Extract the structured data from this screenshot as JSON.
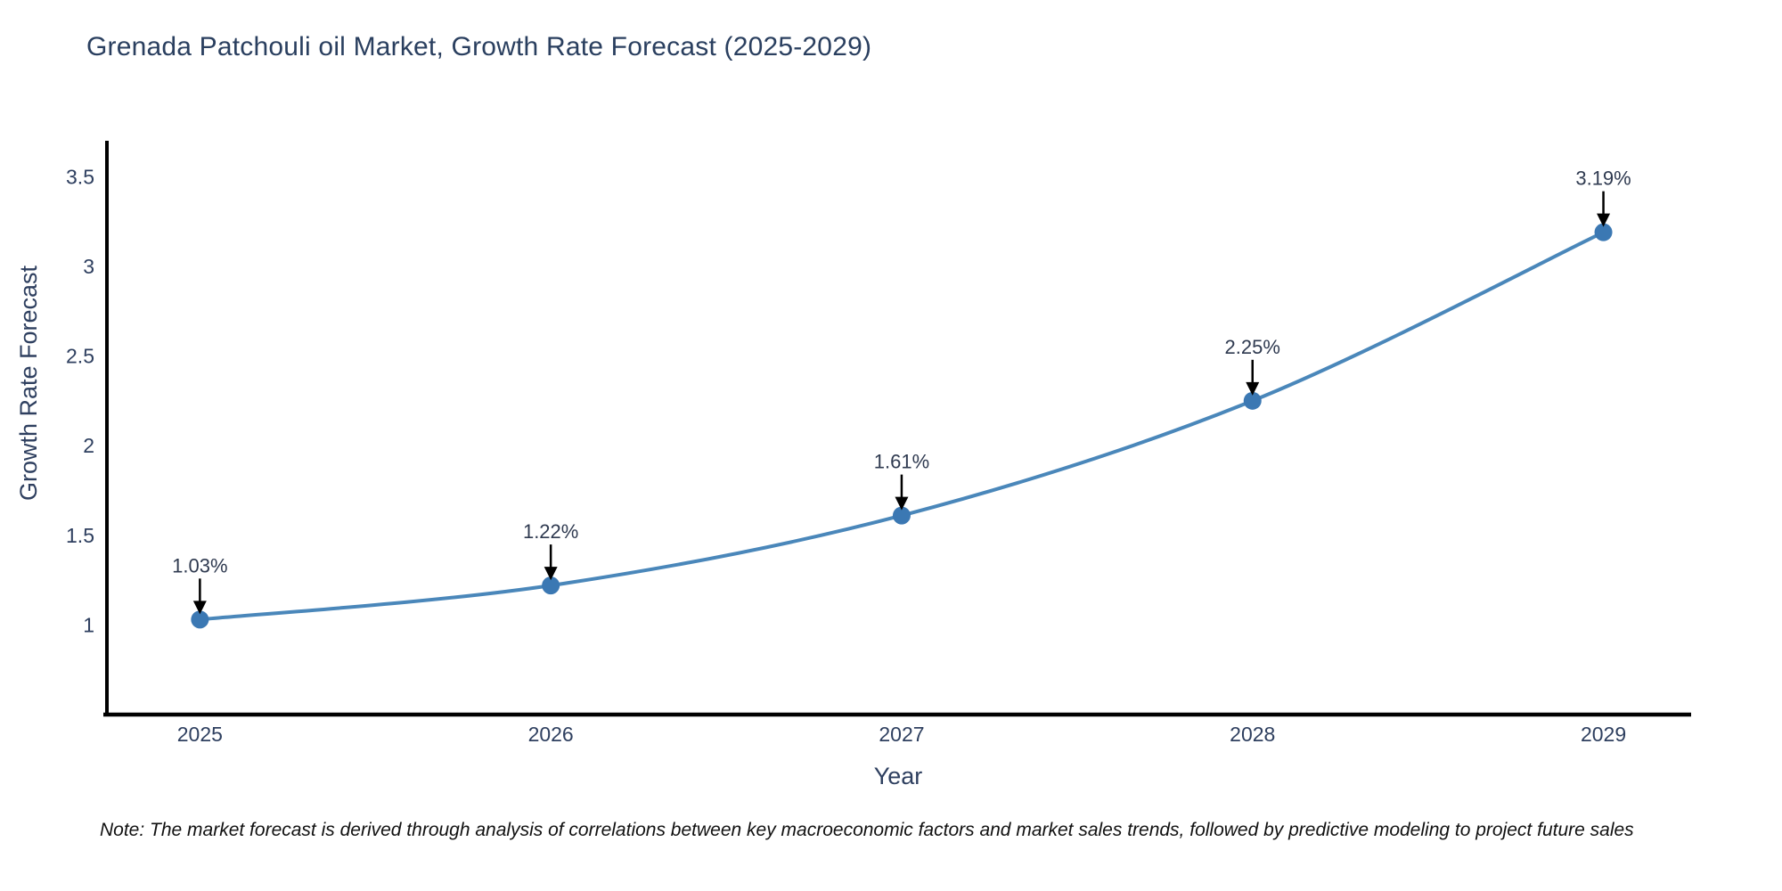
{
  "note": "Note: The market forecast is derived through analysis of correlations between key macroeconomic factors and market sales trends, followed by predictive modeling to project future sales",
  "chart_data": {
    "type": "line",
    "title": "Grenada Patchouli oil Market, Growth Rate Forecast (2025-2029)",
    "xlabel": "Year",
    "ylabel": "Growth Rate Forecast",
    "x": [
      2025,
      2026,
      2027,
      2028,
      2029
    ],
    "x_tick_labels": [
      "2025",
      "2026",
      "2027",
      "2028",
      "2029"
    ],
    "values": [
      1.03,
      1.22,
      1.61,
      2.25,
      3.19
    ],
    "point_labels": [
      "1.03%",
      "1.22%",
      "1.61%",
      "2.25%",
      "3.19%"
    ],
    "yticks": [
      1,
      1.5,
      2,
      2.5,
      3,
      3.5
    ],
    "ylim": [
      0.5,
      3.7
    ],
    "xlim": [
      2024.735,
      2029.25
    ],
    "grid": false,
    "legend": "none",
    "curve": "spline",
    "line_color": "#4a87ba",
    "marker_color": "#3b78b3",
    "axis_color": "#000000",
    "arrow_color": "#000000"
  }
}
